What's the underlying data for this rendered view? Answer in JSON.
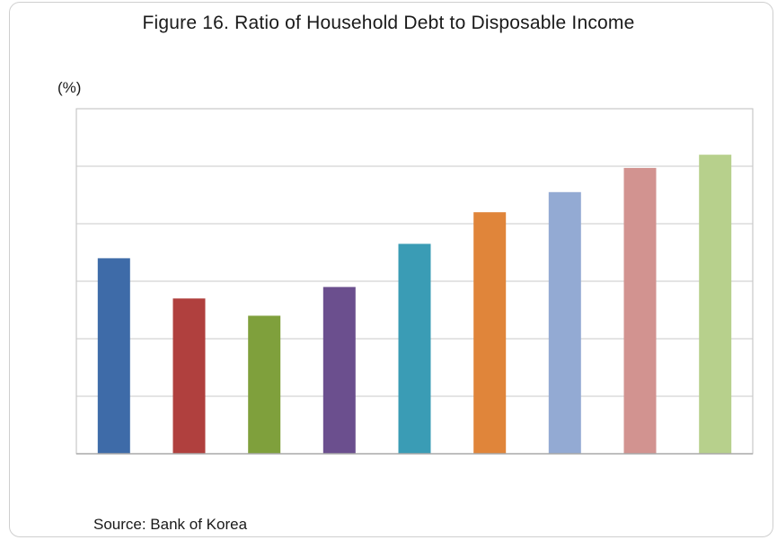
{
  "chart_data": {
    "type": "bar",
    "title": "Figure 16. Ratio of Household Debt to Disposable Income",
    "ylabel": "(%)",
    "source": "Source: Bank of Korea",
    "ylim": [
      0,
      6
    ],
    "grid": true,
    "y_ticks_shown": false,
    "x_ticks_shown": false,
    "values": [
      3.4,
      2.7,
      2.4,
      2.9,
      3.65,
      4.2,
      4.55,
      4.97,
      5.2
    ],
    "colors": [
      "#3E6BA8",
      "#B0403E",
      "#7FA03C",
      "#6B4F8E",
      "#3A9CB5",
      "#E0853A",
      "#93AAD3",
      "#D29390",
      "#B7D08C"
    ]
  }
}
